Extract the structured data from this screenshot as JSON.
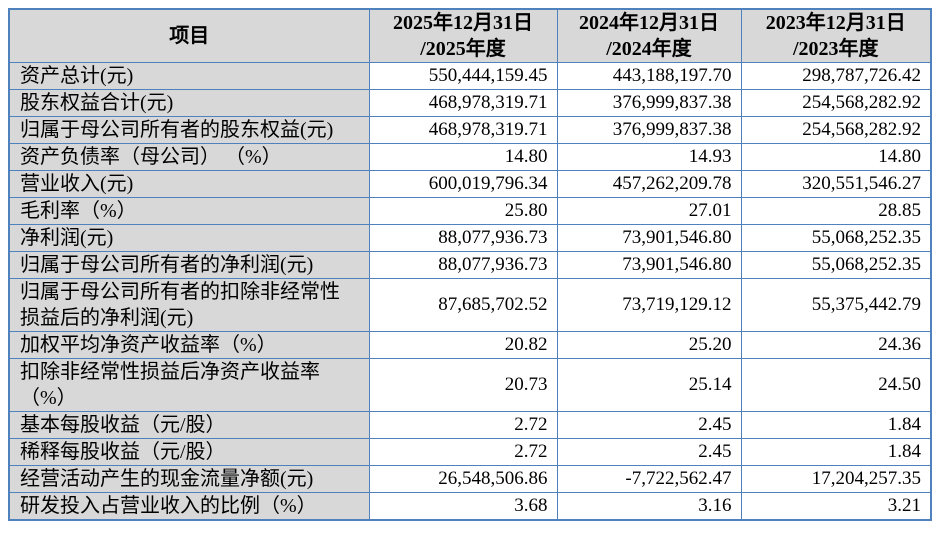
{
  "table": {
    "colors": {
      "border": "#4F81BD",
      "header_background": "#D8D8D8",
      "label_column_background": "#D8D8D8",
      "value_cell_background": "#FFFFFF",
      "text": "#000000"
    },
    "columns": [
      {
        "label": "项目"
      },
      {
        "label": "2025年12月31日\n/2025年度"
      },
      {
        "label": "2024年12月31日\n/2024年度"
      },
      {
        "label": "2023年12月31日\n/2023年度"
      }
    ],
    "rows": [
      {
        "label": "资产总计(元)",
        "values": [
          "550,444,159.45",
          "443,188,197.70",
          "298,787,726.42"
        ]
      },
      {
        "label": "股东权益合计(元)",
        "values": [
          "468,978,319.71",
          "376,999,837.38",
          "254,568,282.92"
        ]
      },
      {
        "label": "归属于母公司所有者的股东权益(元)",
        "values": [
          "468,978,319.71",
          "376,999,837.38",
          "254,568,282.92"
        ]
      },
      {
        "label": "资产负债率（母公司） （%）",
        "values": [
          "14.80",
          "14.93",
          "14.80"
        ]
      },
      {
        "label": "营业收入(元)",
        "values": [
          "600,019,796.34",
          "457,262,209.78",
          "320,551,546.27"
        ]
      },
      {
        "label": "毛利率（%）",
        "values": [
          "25.80",
          "27.01",
          "28.85"
        ]
      },
      {
        "label": "净利润(元)",
        "values": [
          "88,077,936.73",
          "73,901,546.80",
          "55,068,252.35"
        ]
      },
      {
        "label": "归属于母公司所有者的净利润(元)",
        "values": [
          "88,077,936.73",
          "73,901,546.80",
          "55,068,252.35"
        ]
      },
      {
        "label": "归属于母公司所有者的扣除非经常性\n损益后的净利润(元)",
        "values": [
          "87,685,702.52",
          "73,719,129.12",
          "55,375,442.79"
        ]
      },
      {
        "label": "加权平均净资产收益率（%）",
        "values": [
          "20.82",
          "25.20",
          "24.36"
        ]
      },
      {
        "label": "扣除非经常性损益后净资产收益率\n（%）",
        "values": [
          "20.73",
          "25.14",
          "24.50"
        ]
      },
      {
        "label": "基本每股收益（元/股）",
        "values": [
          "2.72",
          "2.45",
          "1.84"
        ]
      },
      {
        "label": "稀释每股收益（元/股）",
        "values": [
          "2.72",
          "2.45",
          "1.84"
        ]
      },
      {
        "label": "经营活动产生的现金流量净额(元)",
        "values": [
          "26,548,506.86",
          "-7,722,562.47",
          "17,204,257.35"
        ]
      },
      {
        "label": "研发投入占营业收入的比例（%）",
        "values": [
          "3.68",
          "3.16",
          "3.21"
        ]
      }
    ]
  }
}
